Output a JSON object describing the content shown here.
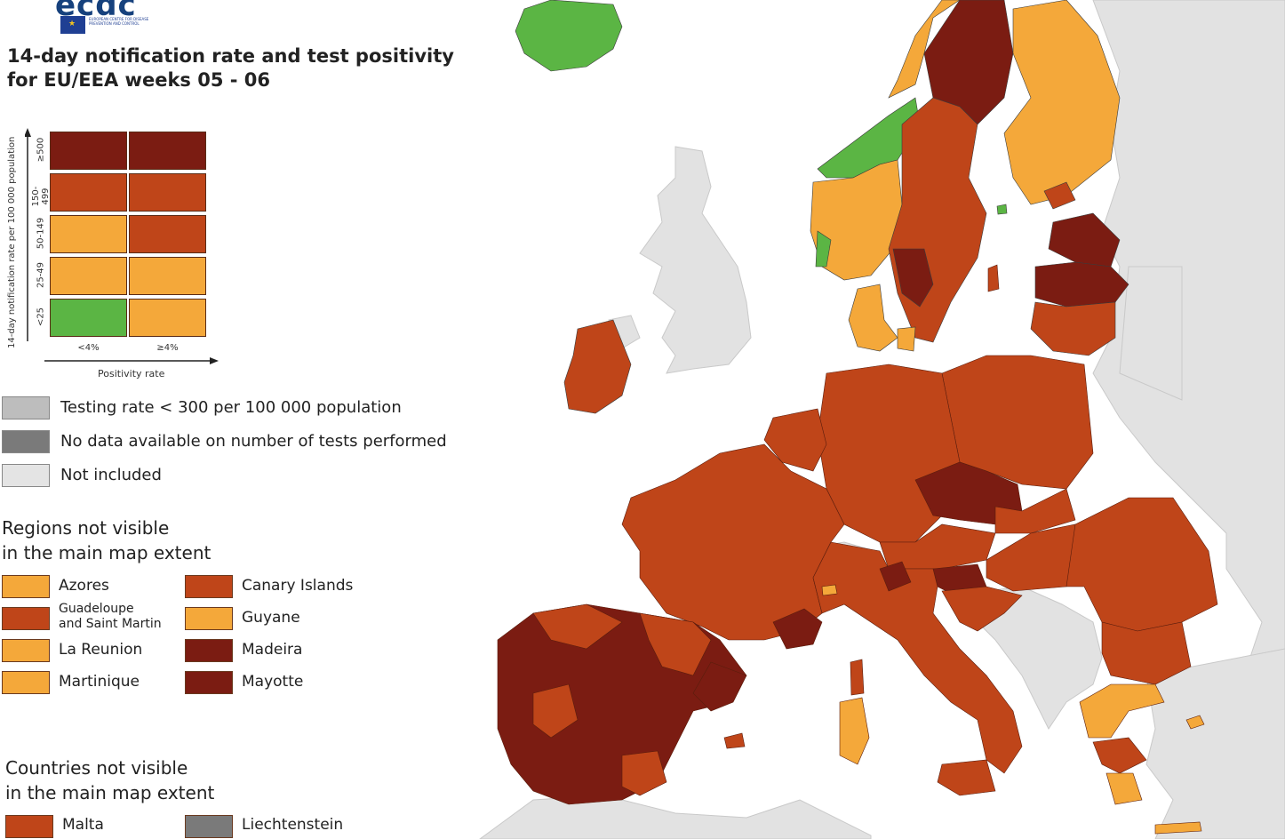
{
  "organisation": {
    "logo_text": "ecdc",
    "logo_subtext": "EUROPEAN CENTRE FOR DISEASE PREVENTION AND CONTROL"
  },
  "title": "14-day notification rate and test positivity\nfor EU/EEA weeks 05 - 06",
  "colors": {
    "dark_red": "#7b1c12",
    "red": "#bf4519",
    "orange": "#f4a83a",
    "green": "#5bb544",
    "testing_low": "#bdbdbd",
    "no_data": "#7a7a7a",
    "not_included": "#e4e4e4",
    "sea": "#ffffff"
  },
  "matrix": {
    "y_axis_label": "14-day notification rate per 100 000 population",
    "x_axis_label": "Positivity rate",
    "rows": [
      {
        "label": "≥500",
        "cells": [
          "dark_red",
          "dark_red"
        ]
      },
      {
        "label": "150-499",
        "cells": [
          "red",
          "red"
        ]
      },
      {
        "label": "50-149",
        "cells": [
          "orange",
          "red"
        ]
      },
      {
        "label": "25-49",
        "cells": [
          "orange",
          "orange"
        ]
      },
      {
        "label": "<25",
        "cells": [
          "green",
          "orange"
        ]
      }
    ],
    "columns": [
      "<4%",
      "≥4%"
    ]
  },
  "legend": [
    {
      "color": "testing_low",
      "label": "Testing rate < 300 per 100 000 population"
    },
    {
      "color": "no_data",
      "label": "No data available on number of tests performed"
    },
    {
      "color": "not_included",
      "label": "Not included"
    }
  ],
  "regions": {
    "title": "Regions not visible\nin the main map extent",
    "items": [
      {
        "name": "Azores",
        "color": "orange"
      },
      {
        "name": "Canary Islands",
        "color": "red"
      },
      {
        "name": "Guadeloupe\nand Saint Martin",
        "color": "red"
      },
      {
        "name": "Guyane",
        "color": "orange"
      },
      {
        "name": "La Reunion",
        "color": "orange"
      },
      {
        "name": "Madeira",
        "color": "dark_red"
      },
      {
        "name": "Martinique",
        "color": "orange"
      },
      {
        "name": "Mayotte",
        "color": "dark_red"
      }
    ]
  },
  "countries": {
    "title": "Countries not visible\nin the main map extent",
    "items": [
      {
        "name": "Malta",
        "color": "red"
      },
      {
        "name": "Liechtenstein",
        "color": "no_data"
      }
    ]
  }
}
